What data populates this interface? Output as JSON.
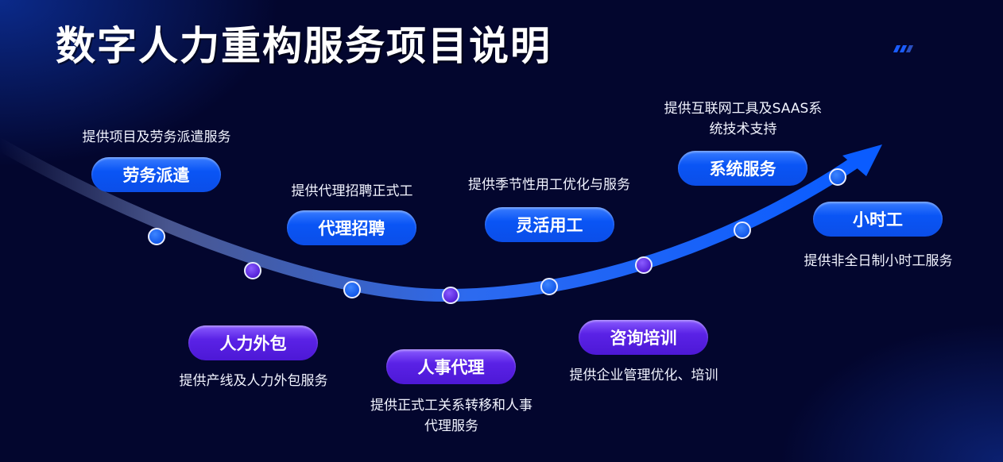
{
  "title": "数字人力重构服务项目说明",
  "colors": {
    "blue": "#0a55f5",
    "purple": "#5a22e6",
    "background": "#03062e"
  },
  "services": [
    {
      "label": "劳务派遣",
      "desc": "提供项目及劳务派遣服务",
      "color": "blue"
    },
    {
      "label": "人力外包",
      "desc": "提供产线及人力外包服务",
      "color": "purple"
    },
    {
      "label": "代理招聘",
      "desc": "提供代理招聘正式工",
      "color": "blue"
    },
    {
      "label": "人事代理",
      "desc_line1": "提供正式工关系转移和人事",
      "desc_line2": "代理服务",
      "color": "purple"
    },
    {
      "label": "灵活用工",
      "desc": "提供季节性用工优化与服务",
      "color": "blue"
    },
    {
      "label": "咨询培训",
      "desc": "提供企业管理优化、培训",
      "color": "purple"
    },
    {
      "label": "系统服务",
      "desc_line1": "提供互联网工具及SAAS系",
      "desc_line2": "统技术支持",
      "color": "blue"
    },
    {
      "label": "小时工",
      "desc": "提供非全日制小时工服务",
      "color": "blue"
    }
  ]
}
